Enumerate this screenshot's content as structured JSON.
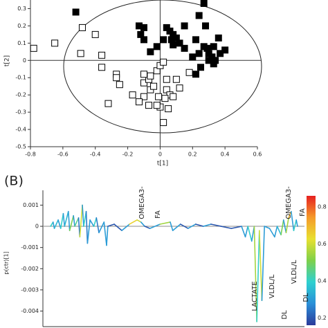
{
  "chart_data": [
    {
      "type": "scatter",
      "xlabel": "t[1]",
      "ylabel": "t[2]",
      "xlim": [
        -0.8,
        0.6
      ],
      "ylim": [
        -0.5,
        0.35
      ],
      "xticks": [
        -0.8,
        -0.6,
        -0.4,
        -0.2,
        0,
        0.2,
        0.4,
        0.6
      ],
      "yticks": [
        0.3,
        0.2,
        0.1,
        0,
        -0.1,
        -0.2,
        -0.3,
        -0.4,
        -0.5
      ],
      "series": [
        {
          "color": "#000000",
          "filled": true,
          "x": [
            -0.52,
            -0.13,
            -0.1,
            -0.12,
            -0.1,
            0.04,
            0.06,
            0.08,
            0.1,
            0.15,
            0.12,
            0.15,
            0.27,
            0.24,
            0.28,
            0.22,
            0.27,
            0.29,
            0.33,
            0.24,
            0.3,
            0.32,
            0.34,
            0.3,
            0.36,
            0.4,
            0.37,
            0.2,
            0.25,
            0.07,
            0.02,
            0.08,
            0.33,
            0.22,
            -0.02,
            -0.06
          ],
          "values": [
            0.28,
            0.2,
            0.19,
            0.15,
            0.12,
            0.19,
            0.17,
            0.15,
            0.13,
            0.2,
            0.1,
            0.07,
            0.33,
            0.26,
            0.2,
            0.12,
            0.08,
            0.07,
            0.08,
            0.04,
            0.04,
            0.02,
            0.0,
            0.0,
            0.13,
            0.06,
            0.04,
            0.02,
            -0.04,
            0.12,
            0.12,
            0.09,
            -0.02,
            -0.08,
            0.08,
            0.05
          ]
        },
        {
          "color": "#000000",
          "filled": false,
          "x": [
            -0.78,
            -0.65,
            -0.48,
            -0.4,
            -0.49,
            -0.36,
            -0.36,
            -0.27,
            -0.27,
            -0.25,
            -0.32,
            -0.17,
            -0.1,
            -0.06,
            -0.1,
            -0.07,
            -0.06,
            -0.02,
            0,
            0.02,
            -0.1,
            -0.13,
            -0.07,
            -0.01,
            0.04,
            0.06,
            0.0,
            0.05,
            0.02,
            0.1,
            0.12,
            0.03,
            0.18,
            -0.04,
            0.08,
            -0.02,
            0.04
          ],
          "values": [
            0.07,
            0.1,
            0.19,
            0.15,
            0.04,
            -0.04,
            0.03,
            -0.08,
            -0.1,
            -0.14,
            -0.25,
            -0.2,
            -0.21,
            -0.17,
            -0.13,
            -0.11,
            -0.09,
            -0.06,
            -0.03,
            -0.01,
            -0.08,
            -0.24,
            -0.26,
            -0.21,
            -0.17,
            -0.2,
            -0.27,
            -0.28,
            -0.36,
            -0.11,
            -0.16,
            -0.22,
            -0.07,
            -0.15,
            -0.21,
            -0.26,
            -0.11
          ]
        }
      ]
    },
    {
      "type": "line",
      "panel_label": "(B)",
      "ylabel": "p(ctr)[1]",
      "xlim": [
        0,
        100
      ],
      "ylim": [
        -0.0048,
        0.0017
      ],
      "yticks": [
        0.001,
        0,
        -0.001,
        -0.002,
        -0.003,
        -0.004
      ],
      "x": [
        3,
        4,
        4.5,
        6,
        7,
        8,
        8.5,
        10,
        10.5,
        12,
        12.5,
        14,
        14.5,
        15.5,
        16,
        17,
        17.5,
        18.5,
        20,
        21,
        22,
        24,
        25,
        25.5,
        28,
        31,
        34,
        37,
        38.5,
        40,
        42,
        46,
        50,
        51,
        54,
        57,
        60,
        63,
        66,
        70,
        74,
        78,
        79.5,
        80.5,
        82,
        83,
        84,
        85,
        86,
        87,
        89,
        91,
        92,
        93.5,
        94.5,
        95.5,
        96.5,
        97.5,
        98.5,
        99.5,
        100
      ],
      "values": [
        0,
        0.0002,
        -0.0001,
        0.0003,
        -0.0001,
        0.0006,
        0,
        0.0007,
        -0.0002,
        0.0005,
        0,
        0.0004,
        -0.0005,
        0.001,
        0,
        0.0007,
        -0.0008,
        0.0003,
        0,
        0.0004,
        -0.0003,
        0.0002,
        -0.0009,
        0,
        0.0001,
        -0.0002,
        0.0001,
        0.0003,
        0.0002,
        0,
        -0.0001,
        0.0001,
        0.0002,
        -0.0002,
        0.0001,
        -0.0001,
        0.0001,
        0,
        0.0001,
        0,
        -0.0001,
        0,
        -0.0005,
        0,
        -0.0007,
        0,
        -0.0045,
        -0.0002,
        -0.0035,
        0,
        -0.0001,
        -0.0005,
        0,
        -0.0004,
        0.0003,
        -0.0003,
        0.0004,
        0.0007,
        -0.0002,
        0.0003,
        0
      ],
      "corr": [
        0.3,
        0.4,
        0.3,
        0.35,
        0.3,
        0.4,
        0.3,
        0.35,
        0.3,
        0.5,
        0.3,
        0.45,
        0.25,
        0.6,
        0.3,
        0.4,
        0.25,
        0.3,
        0.3,
        0.4,
        0.25,
        0.3,
        0.3,
        0.3,
        0.2,
        0.2,
        0.3,
        0.65,
        0.6,
        0.3,
        0.2,
        0.3,
        0.55,
        0.3,
        0.3,
        0.2,
        0.3,
        0.2,
        0.3,
        0.2,
        0.2,
        0.2,
        0.3,
        0.3,
        0.4,
        0.3,
        0.55,
        0.4,
        0.6,
        0.3,
        0.3,
        0.3,
        0.3,
        0.35,
        0.5,
        0.3,
        0.55,
        0.7,
        0.3,
        0.4,
        0.3
      ],
      "colorbar": {
        "lim": [
          0.16,
          0.86
        ],
        "ticks": [
          0.8,
          0.6,
          0.4,
          0.2
        ],
        "colors": [
          "#2b3a9a",
          "#2a8fd8",
          "#2ed0d0",
          "#7ed04a",
          "#e8e030",
          "#f59a2a",
          "#e62020"
        ]
      },
      "annotations": [
        "OMEGA3-",
        "FA",
        "LACTATE",
        "VLDL/L",
        "DL",
        "OMEGA3-",
        "FA",
        "VLDL/L",
        "DL"
      ]
    }
  ]
}
